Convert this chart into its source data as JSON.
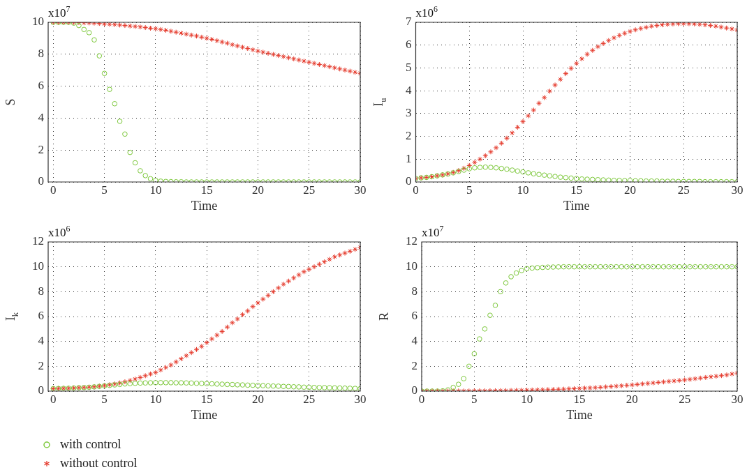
{
  "chart_data": [
    {
      "type": "scatter",
      "xlabel": "Time",
      "ylabel": "S",
      "annotations": [
        "x10$^{7}$"
      ],
      "xlim": [
        -0.5,
        30
      ],
      "xticks": [
        0,
        5,
        10,
        15,
        20,
        25,
        30
      ],
      "ylim": [
        0,
        10
      ],
      "yticks": [
        0,
        2,
        4,
        6,
        8,
        10
      ],
      "grid": true,
      "legend": "bottom left",
      "x": [
        0,
        0.5,
        1,
        1.5,
        2,
        2.5,
        3,
        3.5,
        4,
        4.5,
        5,
        5.5,
        6,
        6.5,
        7,
        7.5,
        8,
        8.5,
        9,
        9.5,
        10,
        10.5,
        11,
        11.5,
        12,
        12.5,
        13,
        13.5,
        14,
        14.5,
        15,
        15.5,
        16,
        16.5,
        17,
        17.5,
        18,
        18.5,
        19,
        19.5,
        20,
        20.5,
        21,
        21.5,
        22,
        22.5,
        23,
        23.5,
        24,
        24.5,
        25,
        25.5,
        26,
        26.5,
        27,
        27.5,
        28,
        28.5,
        29,
        29.5,
        30
      ],
      "series": [
        {
          "name": "with control",
          "color": "#7cc83a",
          "marker": "circle",
          "values": [
            10,
            10,
            10,
            10,
            9.95,
            9.8,
            9.55,
            9.35,
            8.9,
            7.9,
            6.8,
            5.8,
            4.9,
            3.8,
            3.0,
            1.85,
            1.2,
            0.7,
            0.4,
            0.2,
            0.1,
            0.05,
            0.03,
            0.02,
            0.01,
            0.01,
            0,
            0,
            0,
            0,
            0,
            0,
            0,
            0,
            0,
            0,
            0,
            0,
            0,
            0,
            0,
            0,
            0,
            0,
            0,
            0,
            0,
            0,
            0,
            0,
            0,
            0,
            0,
            0,
            0,
            0,
            0,
            0,
            0,
            0,
            0
          ]
        },
        {
          "name": "without control",
          "color": "#e53a2c",
          "marker": "cross",
          "values": [
            10,
            10,
            10,
            10,
            9.99,
            9.98,
            9.97,
            9.96,
            9.95,
            9.93,
            9.9,
            9.88,
            9.86,
            9.83,
            9.8,
            9.77,
            9.74,
            9.71,
            9.67,
            9.63,
            9.6,
            9.55,
            9.5,
            9.44,
            9.38,
            9.32,
            9.26,
            9.2,
            9.14,
            9.07,
            9.0,
            8.93,
            8.85,
            8.77,
            8.69,
            8.6,
            8.52,
            8.44,
            8.36,
            8.28,
            8.2,
            8.13,
            8.06,
            7.99,
            7.92,
            7.85,
            7.78,
            7.71,
            7.64,
            7.57,
            7.5,
            7.43,
            7.36,
            7.29,
            7.22,
            7.15,
            7.08,
            7.01,
            6.94,
            6.87,
            6.8
          ]
        }
      ]
    },
    {
      "type": "scatter",
      "xlabel": "Time",
      "ylabel": "I$_{u}$",
      "annotations": [
        "x10$^{6}$"
      ],
      "xlim": [
        0,
        30
      ],
      "xticks": [
        0,
        5,
        10,
        15,
        20,
        25,
        30
      ],
      "ylim": [
        0,
        7
      ],
      "yticks": [
        0,
        1,
        2,
        3,
        4,
        5,
        6,
        7
      ],
      "grid": true,
      "x": [
        0,
        0.5,
        1,
        1.5,
        2,
        2.5,
        3,
        3.5,
        4,
        4.5,
        5,
        5.5,
        6,
        6.5,
        7,
        7.5,
        8,
        8.5,
        9,
        9.5,
        10,
        10.5,
        11,
        11.5,
        12,
        12.5,
        13,
        13.5,
        14,
        14.5,
        15,
        15.5,
        16,
        16.5,
        17,
        17.5,
        18,
        18.5,
        19,
        19.5,
        20,
        20.5,
        21,
        21.5,
        22,
        22.5,
        23,
        23.5,
        24,
        24.5,
        25,
        25.5,
        26,
        26.5,
        27,
        27.5,
        28,
        28.5,
        29,
        29.5,
        30
      ],
      "series": [
        {
          "color": "#7cc83a",
          "marker": "circle",
          "values": [
            0.15,
            0.18,
            0.2,
            0.23,
            0.27,
            0.31,
            0.35,
            0.4,
            0.46,
            0.52,
            0.58,
            0.62,
            0.64,
            0.65,
            0.64,
            0.62,
            0.59,
            0.56,
            0.52,
            0.48,
            0.44,
            0.4,
            0.36,
            0.33,
            0.3,
            0.27,
            0.24,
            0.21,
            0.19,
            0.17,
            0.15,
            0.13,
            0.12,
            0.11,
            0.1,
            0.09,
            0.08,
            0.07,
            0.07,
            0.06,
            0.06,
            0.05,
            0.05,
            0.04,
            0.04,
            0.04,
            0.03,
            0.03,
            0.03,
            0.02,
            0.02,
            0.02,
            0.02,
            0.02,
            0.01,
            0.01,
            0.01,
            0.01,
            0.01,
            0.01,
            0.01
          ]
        },
        {
          "color": "#e53a2c",
          "marker": "cross",
          "values": [
            0.15,
            0.18,
            0.2,
            0.23,
            0.27,
            0.31,
            0.36,
            0.42,
            0.5,
            0.6,
            0.72,
            0.86,
            1.0,
            1.15,
            1.32,
            1.5,
            1.7,
            1.92,
            2.15,
            2.4,
            2.65,
            2.9,
            3.15,
            3.45,
            3.7,
            3.98,
            4.25,
            4.5,
            4.75,
            4.98,
            5.2,
            5.4,
            5.6,
            5.77,
            5.93,
            6.07,
            6.2,
            6.32,
            6.43,
            6.52,
            6.6,
            6.67,
            6.73,
            6.78,
            6.83,
            6.86,
            6.89,
            6.91,
            6.93,
            6.94,
            6.94,
            6.94,
            6.93,
            6.91,
            6.89,
            6.86,
            6.83,
            6.79,
            6.75,
            6.71,
            6.66
          ]
        }
      ]
    },
    {
      "type": "scatter",
      "xlabel": "Time",
      "ylabel": "I$_{k}$",
      "annotations": [
        "x10$^{6}$"
      ],
      "xlim": [
        -0.5,
        30
      ],
      "xticks": [
        0,
        5,
        10,
        15,
        20,
        25,
        30
      ],
      "ylim": [
        0,
        12
      ],
      "yticks": [
        0,
        2,
        4,
        6,
        8,
        10,
        12
      ],
      "grid": true,
      "x": [
        0,
        0.5,
        1,
        1.5,
        2,
        2.5,
        3,
        3.5,
        4,
        4.5,
        5,
        5.5,
        6,
        6.5,
        7,
        7.5,
        8,
        8.5,
        9,
        9.5,
        10,
        10.5,
        11,
        11.5,
        12,
        12.5,
        13,
        13.5,
        14,
        14.5,
        15,
        15.5,
        16,
        16.5,
        17,
        17.5,
        18,
        18.5,
        19,
        19.5,
        20,
        20.5,
        21,
        21.5,
        22,
        22.5,
        23,
        23.5,
        24,
        24.5,
        25,
        25.5,
        26,
        26.5,
        27,
        27.5,
        28,
        28.5,
        29,
        29.5,
        30
      ],
      "series": [
        {
          "color": "#7cc83a",
          "marker": "circle",
          "values": [
            0.2,
            0.21,
            0.22,
            0.23,
            0.25,
            0.27,
            0.29,
            0.31,
            0.34,
            0.38,
            0.42,
            0.46,
            0.5,
            0.54,
            0.58,
            0.6,
            0.63,
            0.65,
            0.66,
            0.67,
            0.68,
            0.68,
            0.68,
            0.68,
            0.67,
            0.67,
            0.66,
            0.65,
            0.63,
            0.62,
            0.6,
            0.59,
            0.57,
            0.56,
            0.54,
            0.53,
            0.51,
            0.5,
            0.48,
            0.47,
            0.45,
            0.44,
            0.42,
            0.41,
            0.4,
            0.38,
            0.37,
            0.35,
            0.34,
            0.32,
            0.31,
            0.3,
            0.29,
            0.28,
            0.27,
            0.26,
            0.25,
            0.24,
            0.23,
            0.22,
            0.2
          ]
        },
        {
          "color": "#e53a2c",
          "marker": "cross",
          "values": [
            0.2,
            0.21,
            0.22,
            0.23,
            0.25,
            0.27,
            0.29,
            0.32,
            0.35,
            0.4,
            0.45,
            0.51,
            0.58,
            0.66,
            0.75,
            0.85,
            0.97,
            1.1,
            1.24,
            1.38,
            1.5,
            1.7,
            1.9,
            2.1,
            2.35,
            2.6,
            2.85,
            3.1,
            3.35,
            3.6,
            3.9,
            4.2,
            4.5,
            4.8,
            5.15,
            5.5,
            5.8,
            6.15,
            6.45,
            6.8,
            7.1,
            7.4,
            7.7,
            8.0,
            8.3,
            8.6,
            8.85,
            9.1,
            9.35,
            9.6,
            9.8,
            10.0,
            10.2,
            10.4,
            10.6,
            10.8,
            10.95,
            11.1,
            11.25,
            11.4,
            11.55
          ]
        }
      ]
    },
    {
      "type": "scatter",
      "xlabel": "Time",
      "ylabel": "R",
      "annotations": [
        "x10$^{7}$"
      ],
      "xlim": [
        0,
        30
      ],
      "xticks": [
        0,
        5,
        10,
        15,
        20,
        25,
        30
      ],
      "ylim": [
        0,
        12
      ],
      "yticks": [
        0,
        2,
        4,
        6,
        8,
        10,
        12
      ],
      "grid": true,
      "x": [
        0,
        0.5,
        1,
        1.5,
        2,
        2.5,
        3,
        3.5,
        4,
        4.5,
        5,
        5.5,
        6,
        6.5,
        7,
        7.5,
        8,
        8.5,
        9,
        9.5,
        10,
        10.5,
        11,
        11.5,
        12,
        12.5,
        13,
        13.5,
        14,
        14.5,
        15,
        15.5,
        16,
        16.5,
        17,
        17.5,
        18,
        18.5,
        19,
        19.5,
        20,
        20.5,
        21,
        21.5,
        22,
        22.5,
        23,
        23.5,
        24,
        24.5,
        25,
        25.5,
        26,
        26.5,
        27,
        27.5,
        28,
        28.5,
        29,
        29.5,
        30
      ],
      "series": [
        {
          "color": "#7cc83a",
          "marker": "circle",
          "values": [
            0,
            0,
            0,
            0,
            0.02,
            0.1,
            0.3,
            0.55,
            1.0,
            2.0,
            3.0,
            4.2,
            5.0,
            6.1,
            6.9,
            8.0,
            8.7,
            9.2,
            9.5,
            9.7,
            9.85,
            9.9,
            9.93,
            9.95,
            9.97,
            9.98,
            9.99,
            10,
            10,
            10,
            10,
            10,
            10,
            10,
            10,
            10,
            10,
            10,
            10,
            10,
            10,
            10,
            10,
            10,
            10,
            10,
            10,
            10,
            10,
            10,
            10,
            10,
            10,
            10,
            10,
            10,
            10,
            10,
            10,
            10,
            10
          ]
        },
        {
          "color": "#e53a2c",
          "marker": "cross",
          "values": [
            0,
            0,
            0,
            0,
            0,
            0,
            0.01,
            0.01,
            0.01,
            0.01,
            0.02,
            0.02,
            0.02,
            0.03,
            0.03,
            0.04,
            0.04,
            0.05,
            0.06,
            0.07,
            0.08,
            0.09,
            0.1,
            0.11,
            0.12,
            0.13,
            0.15,
            0.16,
            0.18,
            0.2,
            0.22,
            0.24,
            0.26,
            0.28,
            0.31,
            0.34,
            0.37,
            0.4,
            0.43,
            0.47,
            0.5,
            0.54,
            0.58,
            0.62,
            0.66,
            0.7,
            0.74,
            0.78,
            0.82,
            0.86,
            0.9,
            0.95,
            1.0,
            1.05,
            1.1,
            1.15,
            1.2,
            1.25,
            1.3,
            1.38,
            1.45
          ]
        }
      ]
    }
  ]
}
